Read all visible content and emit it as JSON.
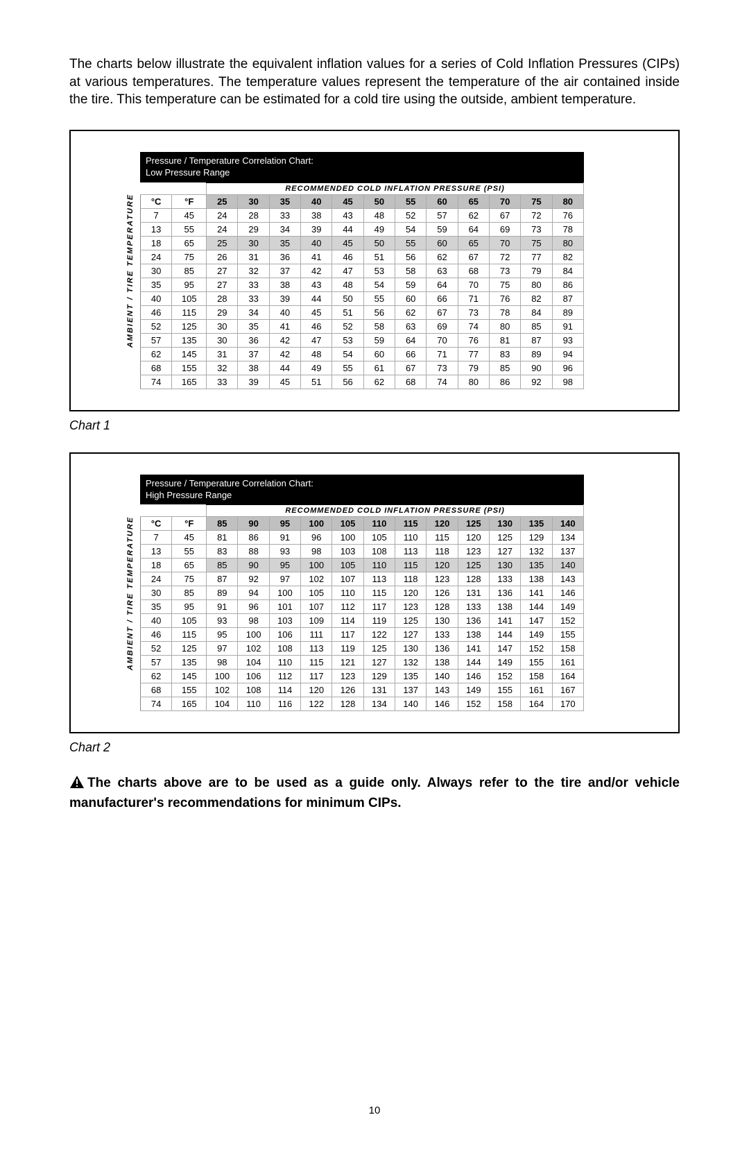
{
  "intro": "The charts below illustrate the equivalent inflation values for a series of Cold Inflation Pressures (CIPs) at various temperatures.  The temperature values represent the temperature of the air contained inside the tire.  This temperature can be estimated for a cold tire using the outside, ambient temperature.",
  "vert_label": "AMBIENT / TIRE TEMPERATURE",
  "rec_header": "RECOMMENDED COLD INFLATION PRESSURE (PSI)",
  "col_c": "°C",
  "col_f": "°F",
  "chart1": {
    "title_a": "Pressure / Temperature Correlation Chart:",
    "title_b": "Low Pressure Range",
    "caption": "Chart 1",
    "psi": [
      25,
      30,
      35,
      40,
      45,
      50,
      55,
      60,
      65,
      70,
      75,
      80
    ],
    "rows": [
      {
        "c": 7,
        "f": 45,
        "v": [
          24,
          28,
          33,
          38,
          43,
          48,
          52,
          57,
          62,
          67,
          72,
          76
        ]
      },
      {
        "c": 13,
        "f": 55,
        "v": [
          24,
          29,
          34,
          39,
          44,
          49,
          54,
          59,
          64,
          69,
          73,
          78
        ]
      },
      {
        "c": 18,
        "f": 65,
        "v": [
          25,
          30,
          35,
          40,
          45,
          50,
          55,
          60,
          65,
          70,
          75,
          80
        ],
        "shade": true
      },
      {
        "c": 24,
        "f": 75,
        "v": [
          26,
          31,
          36,
          41,
          46,
          51,
          56,
          62,
          67,
          72,
          77,
          82
        ]
      },
      {
        "c": 30,
        "f": 85,
        "v": [
          27,
          32,
          37,
          42,
          47,
          53,
          58,
          63,
          68,
          73,
          79,
          84
        ]
      },
      {
        "c": 35,
        "f": 95,
        "v": [
          27,
          33,
          38,
          43,
          48,
          54,
          59,
          64,
          70,
          75,
          80,
          86
        ]
      },
      {
        "c": 40,
        "f": 105,
        "v": [
          28,
          33,
          39,
          44,
          50,
          55,
          60,
          66,
          71,
          76,
          82,
          87
        ]
      },
      {
        "c": 46,
        "f": 115,
        "v": [
          29,
          34,
          40,
          45,
          51,
          56,
          62,
          67,
          73,
          78,
          84,
          89
        ]
      },
      {
        "c": 52,
        "f": 125,
        "v": [
          30,
          35,
          41,
          46,
          52,
          58,
          63,
          69,
          74,
          80,
          85,
          91
        ]
      },
      {
        "c": 57,
        "f": 135,
        "v": [
          30,
          36,
          42,
          47,
          53,
          59,
          64,
          70,
          76,
          81,
          87,
          93
        ]
      },
      {
        "c": 62,
        "f": 145,
        "v": [
          31,
          37,
          42,
          48,
          54,
          60,
          66,
          71,
          77,
          83,
          89,
          94
        ]
      },
      {
        "c": 68,
        "f": 155,
        "v": [
          32,
          38,
          44,
          49,
          55,
          61,
          67,
          73,
          79,
          85,
          90,
          96
        ]
      },
      {
        "c": 74,
        "f": 165,
        "v": [
          33,
          39,
          45,
          51,
          56,
          62,
          68,
          74,
          80,
          86,
          92,
          98
        ]
      }
    ]
  },
  "chart2": {
    "title_a": "Pressure / Temperature Correlation Chart:",
    "title_b": "High Pressure Range",
    "caption": "Chart 2",
    "psi": [
      85,
      90,
      95,
      100,
      105,
      110,
      115,
      120,
      125,
      130,
      135,
      140
    ],
    "rows": [
      {
        "c": 7,
        "f": 45,
        "v": [
          81,
          86,
          91,
          96,
          100,
          105,
          110,
          115,
          120,
          125,
          129,
          134
        ]
      },
      {
        "c": 13,
        "f": 55,
        "v": [
          83,
          88,
          93,
          98,
          103,
          108,
          113,
          118,
          123,
          127,
          132,
          137
        ]
      },
      {
        "c": 18,
        "f": 65,
        "v": [
          85,
          90,
          95,
          100,
          105,
          110,
          115,
          120,
          125,
          130,
          135,
          140
        ],
        "shade": true
      },
      {
        "c": 24,
        "f": 75,
        "v": [
          87,
          92,
          97,
          102,
          107,
          113,
          118,
          123,
          128,
          133,
          138,
          143
        ]
      },
      {
        "c": 30,
        "f": 85,
        "v": [
          89,
          94,
          100,
          105,
          110,
          115,
          120,
          126,
          131,
          136,
          141,
          146
        ]
      },
      {
        "c": 35,
        "f": 95,
        "v": [
          91,
          96,
          101,
          107,
          112,
          117,
          123,
          128,
          133,
          138,
          144,
          149
        ]
      },
      {
        "c": 40,
        "f": 105,
        "v": [
          93,
          98,
          103,
          109,
          114,
          119,
          125,
          130,
          136,
          141,
          147,
          152
        ]
      },
      {
        "c": 46,
        "f": 115,
        "v": [
          95,
          100,
          106,
          111,
          117,
          122,
          127,
          133,
          138,
          144,
          149,
          155
        ]
      },
      {
        "c": 52,
        "f": 125,
        "v": [
          97,
          102,
          108,
          113,
          119,
          125,
          130,
          136,
          141,
          147,
          152,
          158
        ]
      },
      {
        "c": 57,
        "f": 135,
        "v": [
          98,
          104,
          110,
          115,
          121,
          127,
          132,
          138,
          144,
          149,
          155,
          161
        ]
      },
      {
        "c": 62,
        "f": 145,
        "v": [
          100,
          106,
          112,
          117,
          123,
          129,
          135,
          140,
          146,
          152,
          158,
          164
        ]
      },
      {
        "c": 68,
        "f": 155,
        "v": [
          102,
          108,
          114,
          120,
          126,
          131,
          137,
          143,
          149,
          155,
          161,
          167
        ]
      },
      {
        "c": 74,
        "f": 165,
        "v": [
          104,
          110,
          116,
          122,
          128,
          134,
          140,
          146,
          152,
          158,
          164,
          170
        ]
      }
    ]
  },
  "warning": "The charts above are to be used as a guide only.  Always refer to the tire and/or vehicle manufacturer's recommendations for minimum CIPs.",
  "page": "10"
}
